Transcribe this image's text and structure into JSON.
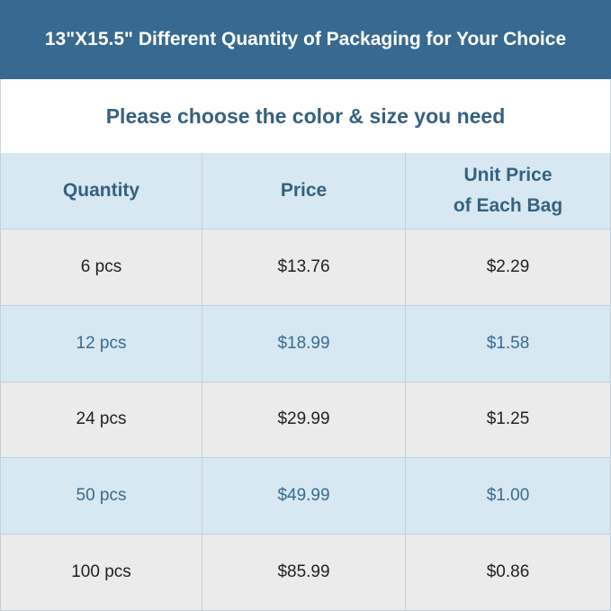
{
  "header": {
    "title": "13\"X15.5\" Different Quantity of Packaging for Your Choice"
  },
  "subtitle": "Please choose the color & size you need",
  "table": {
    "columns": [
      "Quantity",
      "Price",
      "Unit Price\nof Each Bag"
    ],
    "rows": [
      [
        "6 pcs",
        "$13.76",
        "$2.29"
      ],
      [
        "12 pcs",
        "$18.99",
        "$1.58"
      ],
      [
        "24 pcs",
        "$29.99",
        "$1.25"
      ],
      [
        "50 pcs",
        "$49.99",
        "$1.00"
      ],
      [
        "100 pcs",
        "$85.99",
        "$0.86"
      ]
    ]
  }
}
